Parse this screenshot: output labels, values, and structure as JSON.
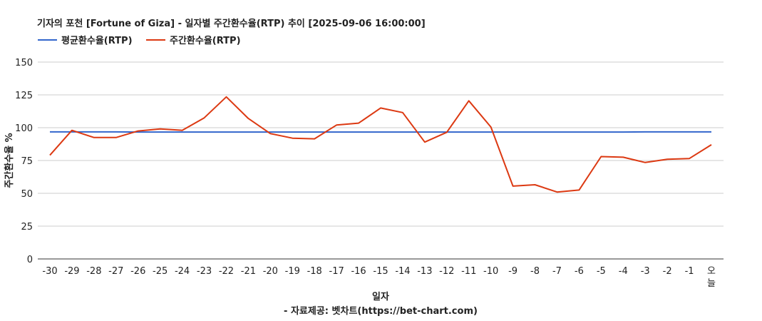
{
  "chart_data": {
    "type": "line",
    "title": "기자의 포천 [Fortune of Giza] - 일자별 주간환수율(RTP) 추이 [2025-09-06 16:00:00]",
    "xlabel": "일자",
    "ylabel": "주간환수율 %",
    "source": "- 자료제공: 벳차트(https://bet-chart.com)",
    "legend_position": "top-left",
    "grid": true,
    "ylim": [
      0,
      150
    ],
    "yticks": [
      0,
      25,
      50,
      75,
      100,
      125,
      150
    ],
    "categories": [
      "-30",
      "-29",
      "-28",
      "-27",
      "-26",
      "-25",
      "-24",
      "-23",
      "-22",
      "-21",
      "-20",
      "-19",
      "-18",
      "-17",
      "-16",
      "-15",
      "-14",
      "-13",
      "-12",
      "-11",
      "-10",
      "-9",
      "-8",
      "-7",
      "-6",
      "-5",
      "-4",
      "-3",
      "-2",
      "-1",
      "오늘"
    ],
    "series": [
      {
        "name": "평균환수율(RTP)",
        "color": "#3366cc",
        "values": [
          96.8,
          96.8,
          96.8,
          96.8,
          96.7,
          96.7,
          96.7,
          96.7,
          96.7,
          96.7,
          96.7,
          96.7,
          96.7,
          96.7,
          96.7,
          96.7,
          96.7,
          96.7,
          96.7,
          96.7,
          96.7,
          96.7,
          96.7,
          96.7,
          96.7,
          96.7,
          96.7,
          96.8,
          96.8,
          96.8,
          96.8
        ]
      },
      {
        "name": "주간환수율(RTP)",
        "color": "#dc3912",
        "values": [
          79,
          98,
          92.5,
          92.5,
          97.5,
          99,
          98,
          107.5,
          123.5,
          107,
          95.5,
          92,
          91.5,
          102,
          103.5,
          115,
          111.5,
          89,
          96.5,
          120.5,
          100.5,
          55.5,
          56.5,
          51,
          52.5,
          78,
          77.5,
          73.5,
          76,
          76.5,
          87
        ]
      }
    ]
  }
}
